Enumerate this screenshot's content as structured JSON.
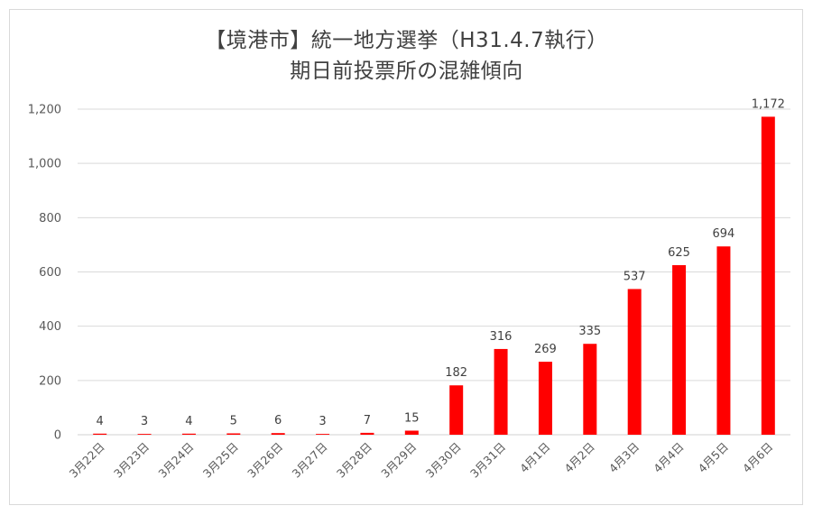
{
  "chart_data": {
    "type": "bar",
    "title_line1": "【境港市】統一地方選挙（H31.4.7執行）",
    "title_line2": "期日前投票所の混雑傾向",
    "categories": [
      "3月22日",
      "3月23日",
      "3月24日",
      "3月25日",
      "3月26日",
      "3月27日",
      "3月28日",
      "3月29日",
      "3月30日",
      "3月31日",
      "4月1日",
      "4月2日",
      "4月3日",
      "4月4日",
      "4月5日",
      "4月6日"
    ],
    "values": [
      4,
      3,
      4,
      5,
      6,
      3,
      7,
      15,
      182,
      316,
      269,
      335,
      537,
      625,
      694,
      1172
    ],
    "value_labels": [
      "4",
      "3",
      "4",
      "5",
      "6",
      "3",
      "7",
      "15",
      "182",
      "316",
      "269",
      "335",
      "537",
      "625",
      "694",
      "1,172"
    ],
    "ylim": [
      0,
      1200
    ],
    "yticks": [
      0,
      200,
      400,
      600,
      800,
      1000,
      1200
    ],
    "ytick_labels": [
      "0",
      "200",
      "400",
      "600",
      "800",
      "1,000",
      "1,200"
    ],
    "grid": true,
    "legend": "none",
    "bar_color": "#ff0000"
  }
}
